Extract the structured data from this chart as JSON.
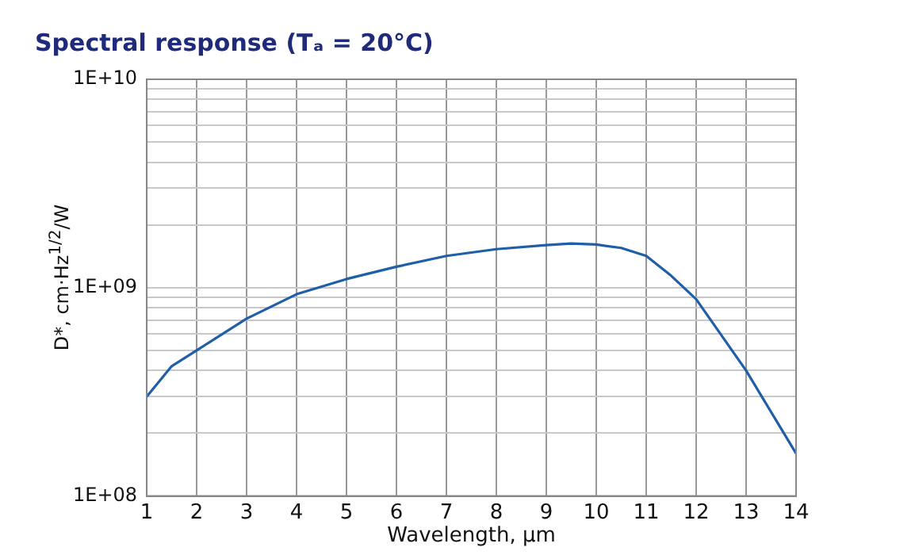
{
  "chart_data": {
    "type": "line",
    "title": "Spectral response (Tₐ = 20°C)",
    "xlabel": "Wavelength, µm",
    "ylabel": "D*, cm·Hz$^{1/2}$/W",
    "x": [
      1,
      1.5,
      2,
      3,
      4,
      5,
      6,
      7,
      8,
      9,
      9.5,
      10,
      10.5,
      11,
      11.5,
      12,
      13,
      14
    ],
    "series": [
      {
        "color": "#1f5fa8",
        "values": [
          300000000.0,
          420000000.0,
          500000000.0,
          710000000.0,
          930000000.0,
          1100000000.0,
          1260000000.0,
          1420000000.0,
          1530000000.0,
          1600000000.0,
          1630000000.0,
          1610000000.0,
          1550000000.0,
          1420000000.0,
          1140000000.0,
          880000000.0,
          400000000.0,
          160000000.0
        ]
      }
    ],
    "xlim": [
      1,
      14
    ],
    "xticks": [
      1,
      2,
      3,
      4,
      5,
      6,
      7,
      8,
      9,
      10,
      11,
      12,
      13,
      14
    ],
    "ylim": [
      100000000.0,
      10000000000.0
    ],
    "yticks": [
      {
        "value": 100000000.0,
        "label": "1E+08"
      },
      {
        "value": 200000000.0,
        "label": null
      },
      {
        "value": 300000000.0,
        "label": null
      },
      {
        "value": 400000000.0,
        "label": null
      },
      {
        "value": 500000000.0,
        "label": null
      },
      {
        "value": 600000000.0,
        "label": null
      },
      {
        "value": 700000000.0,
        "label": null
      },
      {
        "value": 800000000.0,
        "label": null
      },
      {
        "value": 900000000.0,
        "label": null
      },
      {
        "value": 1000000000.0,
        "label": "1E+09"
      },
      {
        "value": 2000000000.0,
        "label": null
      },
      {
        "value": 3000000000.0,
        "label": null
      },
      {
        "value": 4000000000.0,
        "label": null
      },
      {
        "value": 5000000000.0,
        "label": null
      },
      {
        "value": 6000000000.0,
        "label": null
      },
      {
        "value": 7000000000.0,
        "label": null
      },
      {
        "value": 8000000000.0,
        "label": null
      },
      {
        "value": 9000000000.0,
        "label": null
      },
      {
        "value": 10000000000.0,
        "label": "1E+10"
      }
    ],
    "log": "y",
    "grid": true,
    "legend": false,
    "marker": "none",
    "line_style": "solid"
  }
}
